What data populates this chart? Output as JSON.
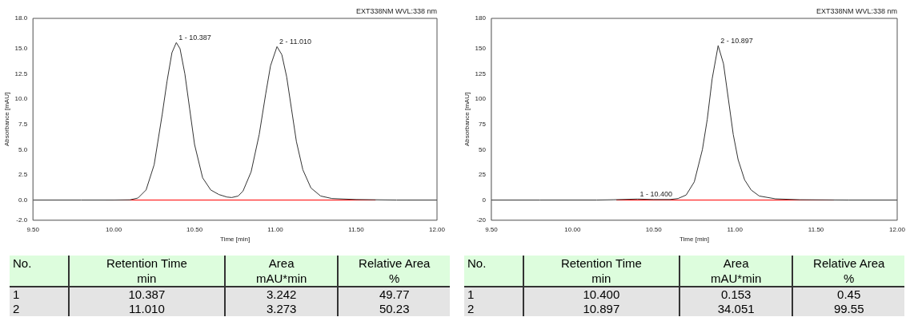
{
  "chart_data": [
    {
      "type": "line",
      "xlabel": "Time [min]",
      "ylabel": "Absorbance [mAU]",
      "xlim": [
        9.5,
        12
      ],
      "ylim": [
        -2,
        18
      ],
      "grid": false,
      "legend": false,
      "xticks": [
        {
          "value": 9.5,
          "label": "9.50"
        },
        {
          "value": 10,
          "label": "10.00"
        },
        {
          "value": 10.5,
          "label": "10.50"
        },
        {
          "value": 11,
          "label": "11.00"
        },
        {
          "value": 11.5,
          "label": "11.50"
        },
        {
          "value": 12,
          "label": "12.00"
        }
      ],
      "yticks": [
        {
          "value": -2,
          "label": "-2.0"
        },
        {
          "value": 0,
          "label": "0.0"
        },
        {
          "value": 2.5,
          "label": "2.5"
        },
        {
          "value": 5,
          "label": "5.0"
        },
        {
          "value": 7.5,
          "label": "7.5"
        },
        {
          "value": 10,
          "label": "10.0"
        },
        {
          "value": 12.5,
          "label": "12.5"
        },
        {
          "value": 15,
          "label": "15.0"
        },
        {
          "value": 18,
          "label": "18.0"
        }
      ],
      "series": [
        {
          "color": "#333333",
          "x": [
            9.5,
            9.8,
            10.0,
            10.1,
            10.15,
            10.2,
            10.25,
            10.3,
            10.33,
            10.36,
            10.387,
            10.41,
            10.44,
            10.47,
            10.5,
            10.55,
            10.6,
            10.65,
            10.7,
            10.73,
            10.77,
            10.8,
            10.85,
            10.9,
            10.94,
            10.97,
            11.01,
            11.04,
            11.07,
            11.1,
            11.13,
            11.17,
            11.22,
            11.28,
            11.35,
            11.5,
            11.75,
            12.0
          ],
          "values": [
            0,
            0,
            0,
            0.02,
            0.2,
            1.0,
            3.5,
            8.5,
            11.8,
            14.6,
            15.6,
            15.0,
            12.5,
            9.0,
            5.5,
            2.2,
            1.0,
            0.55,
            0.3,
            0.25,
            0.4,
            0.9,
            2.8,
            6.5,
            10.5,
            13.3,
            15.2,
            14.4,
            12.2,
            9.0,
            5.8,
            3.0,
            1.2,
            0.4,
            0.15,
            0.05,
            0,
            0
          ]
        },
        {
          "color": "#ff0000",
          "x": [
            9.95,
            11.62
          ],
          "values": [
            0,
            0
          ]
        }
      ],
      "annotations": [
        "EXT338NM WVL:338 nm",
        {
          "text": "1 - 10.387",
          "x": 10.387,
          "y": 15.6
        },
        {
          "text": "2 - 11.010",
          "x": 11.01,
          "y": 15.2
        }
      ]
    },
    {
      "type": "line",
      "xlabel": "Time [min]",
      "ylabel": "Absorbance [mAU]",
      "xlim": [
        9.5,
        12
      ],
      "ylim": [
        -20,
        180
      ],
      "grid": false,
      "legend": false,
      "xticks": [
        {
          "value": 9.5,
          "label": "9.50"
        },
        {
          "value": 10,
          "label": "10.00"
        },
        {
          "value": 10.5,
          "label": "10.50"
        },
        {
          "value": 11,
          "label": "11.00"
        },
        {
          "value": 11.5,
          "label": "11.50"
        },
        {
          "value": 12,
          "label": "12.00"
        }
      ],
      "yticks": [
        -20,
        0,
        25,
        50,
        75,
        100,
        125,
        150,
        180
      ],
      "series": [
        {
          "color": "#333333",
          "x": [
            9.5,
            9.8,
            10.15,
            10.25,
            10.4,
            10.5,
            10.6,
            10.65,
            10.7,
            10.75,
            10.8,
            10.83,
            10.86,
            10.897,
            10.93,
            10.96,
            10.99,
            11.02,
            11.06,
            11.1,
            11.15,
            11.25,
            11.4,
            11.7,
            12.0
          ],
          "values": [
            0,
            0,
            0,
            0.3,
            1.0,
            0.5,
            0.5,
            1.5,
            5,
            18,
            50,
            80,
            120,
            153,
            135,
            100,
            65,
            40,
            20,
            10,
            4,
            1.2,
            0.3,
            0,
            0
          ]
        },
        {
          "color": "#ff0000",
          "x": [
            10.27,
            11.61
          ],
          "values": [
            0,
            0
          ]
        }
      ],
      "annotations": [
        "EXT338NM WVL:338 nm",
        {
          "text": "1 - 10.400",
          "x": 10.4,
          "y": 1.0
        },
        {
          "text": "2 - 10.897",
          "x": 10.897,
          "y": 153
        }
      ]
    },
    {
      "type": "other",
      "annotations": [
        "No.",
        "Retention Time\nmin",
        "Area\nmAU*min",
        "Relative Area\n%",
        "1",
        "10.387",
        "3.242",
        "49.77",
        "2",
        "11.010",
        "3.273",
        "50.23"
      ]
    },
    {
      "type": "other",
      "annotations": [
        "No.",
        "Retention Time\nmin",
        "Area\nmAU*min",
        "Relative Area\n%",
        "1",
        "10.400",
        "0.153",
        "0.45",
        "2",
        "10.897",
        "34.051",
        "99.55"
      ]
    }
  ]
}
